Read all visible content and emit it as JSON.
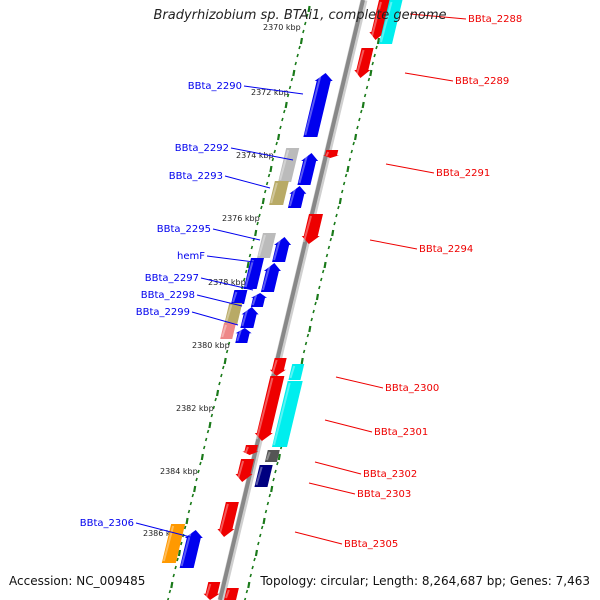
{
  "title": "Bradyrhizobium sp. BTAi1, complete genome",
  "footer": {
    "accession": "Accession: NC_009485",
    "summary": "Topology: circular; Length: 8,264,687 bp; Genes: 7,463"
  },
  "colors": {
    "forward_gene": "#0000ee",
    "reverse_gene": "#ee0000",
    "backbone": "#888888",
    "tick": "#1a7a1a",
    "cyan": "#00eeee",
    "gray": "#bbbbbb",
    "olive": "#b8aa66",
    "pink": "#ee8888",
    "orange": "#ff9900",
    "navy": "#000080",
    "darkgray": "#555555"
  },
  "scale": {
    "kbp_markers": [
      "2370 kbp",
      "2372 kbp",
      "2374 kbp",
      "2376 kbp",
      "2378 kbp",
      "2380 kbp",
      "2382 kbp",
      "2384 kbp",
      "2386 kbp"
    ]
  },
  "left_labels": [
    "BBta_2290",
    "BBta_2292",
    "BBta_2293",
    "BBta_2295",
    "hemF",
    "BBta_2297",
    "BBta_2298",
    "BBta_2299",
    "BBta_2306"
  ],
  "right_labels": [
    "BBta_2288",
    "BBta_2289",
    "BBta_2291",
    "BBta_2294",
    "BBta_2300",
    "BBta_2301",
    "BBta_2302",
    "BBta_2303",
    "BBta_2305"
  ]
}
